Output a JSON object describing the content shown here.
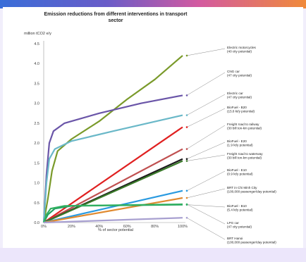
{
  "chart_data": {
    "type": "line",
    "title_line1": "Emission reductions from different interventions in transport",
    "title_line2": "sector",
    "ylabel": "million tCO2 e/y",
    "xlabel": "% of sector potential",
    "x_ticks": [
      "0%",
      "20%",
      "40%",
      "60%",
      "80%",
      "100%"
    ],
    "y_ticks": [
      "0.0",
      "0.5",
      "1.0",
      "1.5",
      "2.0",
      "2.5",
      "3.0",
      "3.5",
      "4.0",
      "4.5"
    ],
    "xlim": [
      0,
      100
    ],
    "ylim": [
      0,
      4.5
    ],
    "series": [
      {
        "label1": "Electric motorcycles",
        "label2": "(40 city potential)",
        "color": "#7a9a2a",
        "points": [
          [
            0,
            0
          ],
          [
            3,
            0.6
          ],
          [
            6,
            1.3
          ],
          [
            10,
            1.8
          ],
          [
            20,
            2.1
          ],
          [
            40,
            2.55
          ],
          [
            60,
            3.1
          ],
          [
            80,
            3.6
          ],
          [
            100,
            4.2
          ]
        ]
      },
      {
        "label1": "CNG car",
        "label2": "(47 city potential)",
        "color": "#6a55a8",
        "points": [
          [
            0,
            0
          ],
          [
            2,
            1.2
          ],
          [
            4,
            2.0
          ],
          [
            7,
            2.3
          ],
          [
            15,
            2.5
          ],
          [
            40,
            2.75
          ],
          [
            70,
            3.0
          ],
          [
            100,
            3.2
          ]
        ]
      },
      {
        "label1": "Electric car",
        "label2": "(47 city potential)",
        "color": "#6ab8c8",
        "points": [
          [
            0,
            0
          ],
          [
            2,
            1.0
          ],
          [
            4,
            1.6
          ],
          [
            8,
            1.85
          ],
          [
            20,
            2.05
          ],
          [
            50,
            2.3
          ],
          [
            100,
            2.7
          ]
        ]
      },
      {
        "label1": "BioFuel - B20",
        "label2": "(15.8 kt/y potential)",
        "color": "#e02020",
        "points": [
          [
            0,
            0
          ],
          [
            100,
            2.4
          ]
        ]
      },
      {
        "label1": "Freight road to railway",
        "label2": "(30 bill ton-km potential)",
        "color": "#c05050",
        "points": [
          [
            0,
            0
          ],
          [
            100,
            1.85
          ]
        ]
      },
      {
        "label1": "BioFuel - E20",
        "label2": "(1.9 kt/y potential)",
        "color": "#1a1a1a",
        "points": [
          [
            0,
            0
          ],
          [
            100,
            1.6
          ]
        ]
      },
      {
        "label1": "Freight road to waterway",
        "label2": "(30 bill ton-km potential)",
        "color": "#3a7a2a",
        "points": [
          [
            0,
            0
          ],
          [
            100,
            1.55
          ]
        ]
      },
      {
        "label1": "BioFuel - E10",
        "label2": "(0.9 kt/y potential)",
        "color": "#2a9ae0",
        "points": [
          [
            0,
            0
          ],
          [
            100,
            0.8
          ]
        ]
      },
      {
        "label1": "BRT in Chi Minh City",
        "label2": "(100,000 passenger/day potential)",
        "color": "#e08a30",
        "points": [
          [
            0,
            0
          ],
          [
            100,
            0.62
          ]
        ]
      },
      {
        "label1": "BioFuel - B10",
        "label2": "(5.4 kt/y potential)",
        "color": "#22a060",
        "points": [
          [
            0,
            0
          ],
          [
            3,
            0.2
          ],
          [
            8,
            0.35
          ],
          [
            20,
            0.42
          ],
          [
            100,
            0.45
          ]
        ]
      },
      {
        "label1": "LPG car",
        "label2": "(47 city potential)",
        "color": "#30b060",
        "points": [
          [
            0,
            0
          ],
          [
            2,
            0.2
          ],
          [
            5,
            0.35
          ],
          [
            15,
            0.42
          ],
          [
            100,
            0.46
          ]
        ]
      },
      {
        "label1": "BRT Hanoi",
        "label2": "(100,000 passenger/day potential)",
        "color": "#a8a0d0",
        "points": [
          [
            0,
            0
          ],
          [
            100,
            0.12
          ]
        ]
      }
    ]
  }
}
